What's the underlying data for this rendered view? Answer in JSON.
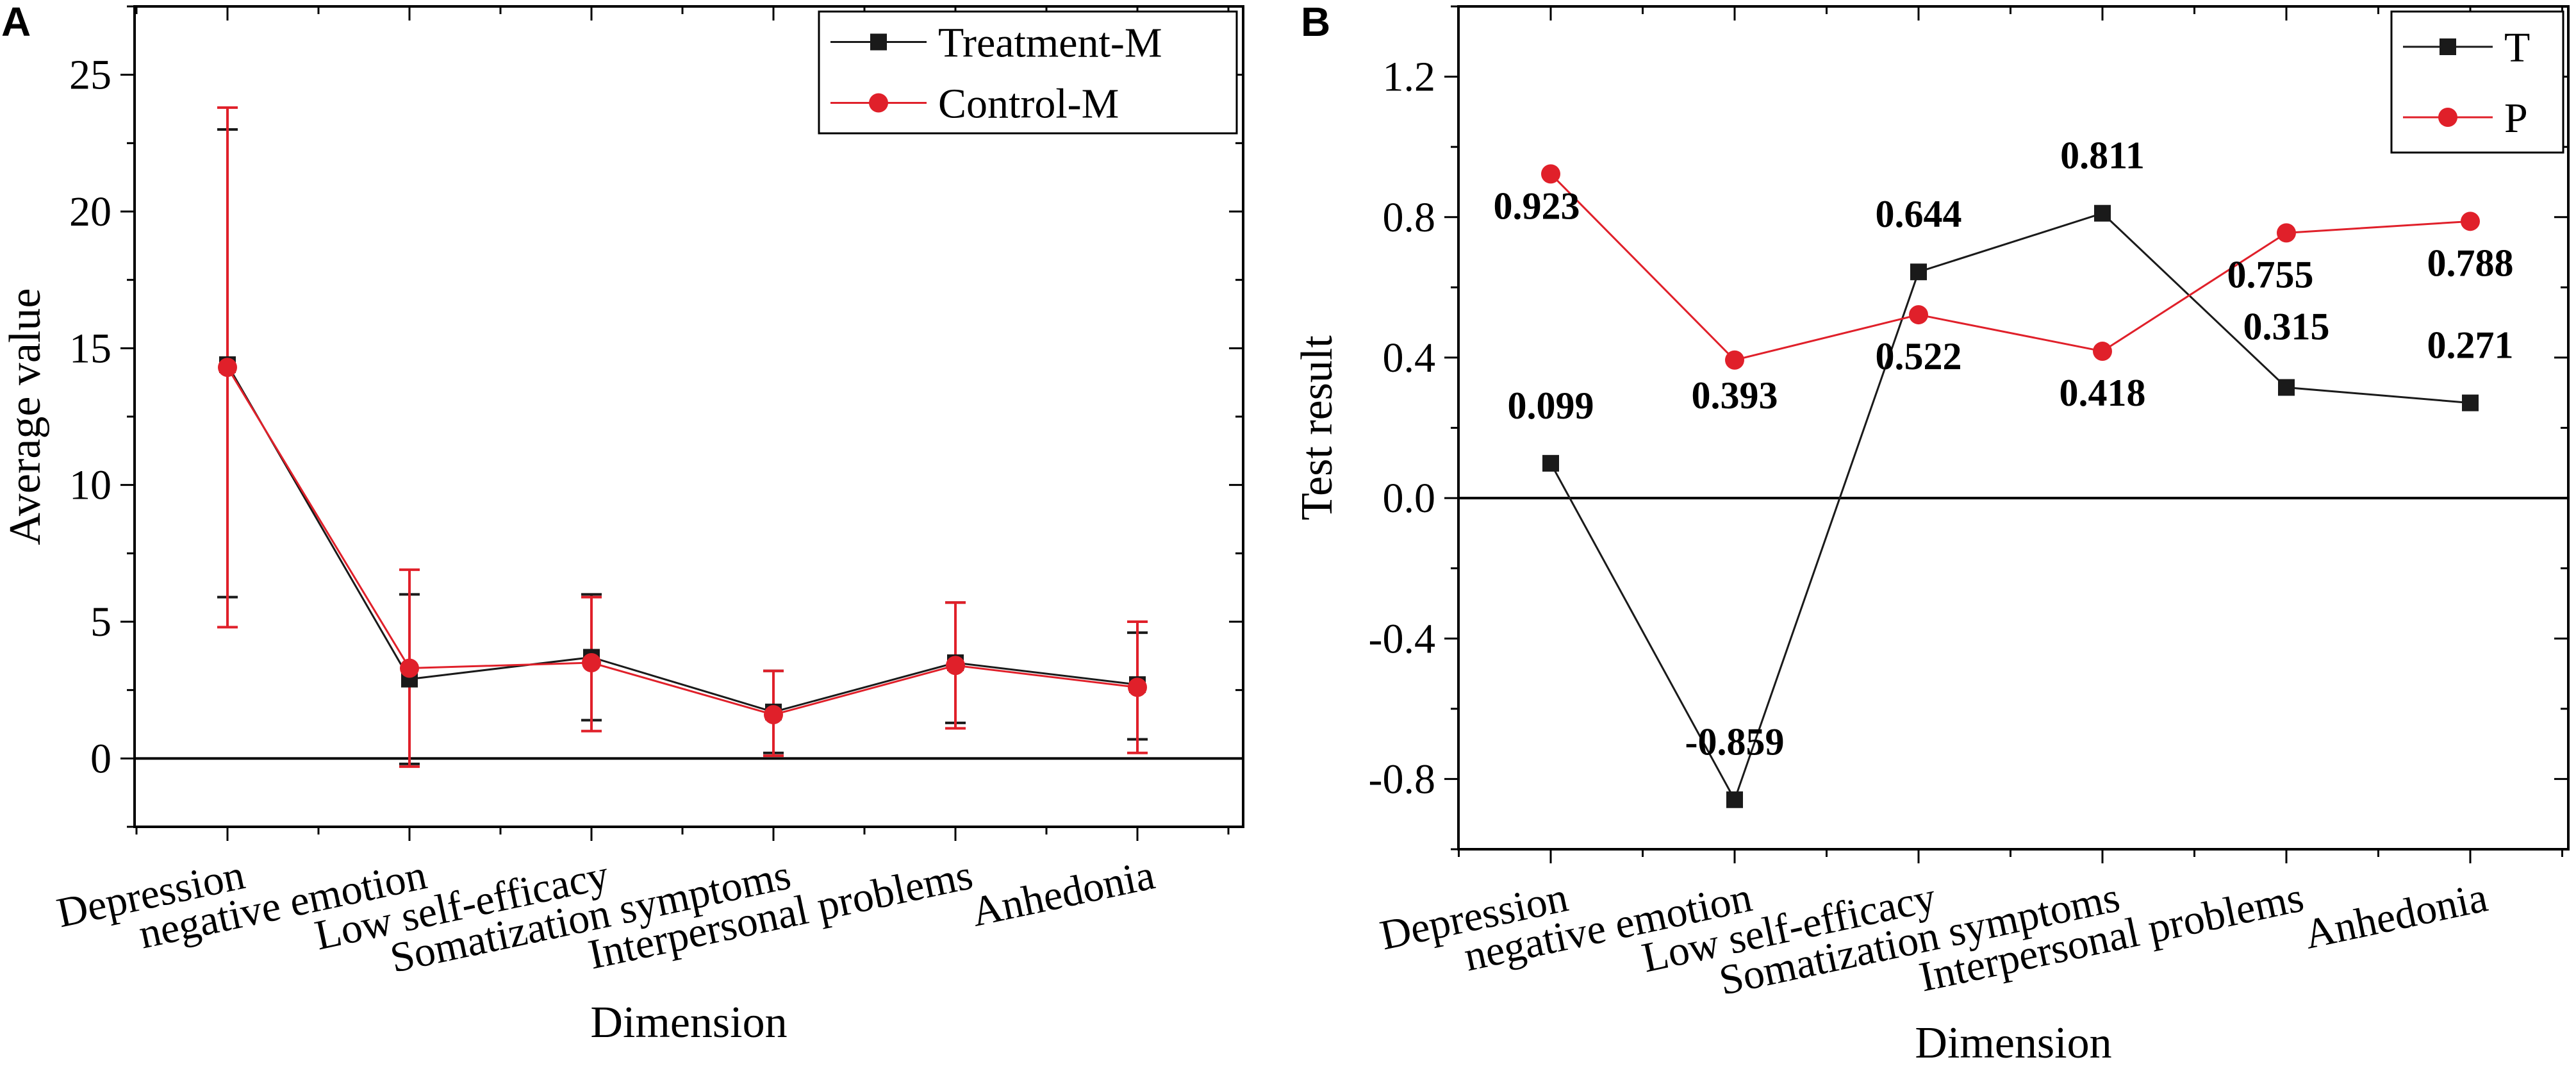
{
  "figure": {
    "panels": [
      "A",
      "B"
    ]
  },
  "chart_data": [
    {
      "panel": "A",
      "type": "line",
      "title": "",
      "xlabel": "Dimension",
      "ylabel": "Average value",
      "ylim": [
        -2.5,
        27.5
      ],
      "yticks": [
        0,
        5,
        10,
        15,
        20,
        25
      ],
      "categories": [
        "Depression",
        "negative emotion",
        "Low self-efficacy",
        "Somatization symptoms",
        "Interpersonal problems",
        "Anhedonia"
      ],
      "series": [
        {
          "name": "Treatment-M",
          "color": "#1a1a1a",
          "marker": "square",
          "values": [
            14.4,
            2.9,
            3.7,
            1.7,
            3.5,
            2.7
          ],
          "error_low": [
            5.9,
            -0.2,
            1.4,
            0.2,
            1.3,
            0.7
          ],
          "error_high": [
            23.0,
            6.0,
            6.0,
            3.2,
            5.7,
            4.6
          ]
        },
        {
          "name": "Control-M",
          "color": "#e0202a",
          "marker": "circle",
          "values": [
            14.3,
            3.3,
            3.5,
            1.6,
            3.4,
            2.6
          ],
          "error_low": [
            4.8,
            -0.3,
            1.0,
            0.1,
            1.1,
            0.2
          ],
          "error_high": [
            23.8,
            6.9,
            5.9,
            3.2,
            5.7,
            5.0
          ]
        }
      ],
      "reference_line": 0,
      "legend": "top-right"
    },
    {
      "panel": "B",
      "type": "line",
      "title": "",
      "xlabel": "Dimension",
      "ylabel": "Test result",
      "ylim": [
        -1.0,
        1.4
      ],
      "yticks": [
        -0.8,
        -0.4,
        0.0,
        0.4,
        0.8,
        1.2
      ],
      "ytick_labels": [
        "-0.8",
        "-0.4",
        "0.0",
        "0.4",
        "0.8",
        "1.2"
      ],
      "categories": [
        "Depression",
        "negative emotion",
        "Low self-efficacy",
        "Somatization symptoms",
        "Interpersonal problems",
        "Anhedonia"
      ],
      "series": [
        {
          "name": "T",
          "color": "#1a1a1a",
          "marker": "square",
          "values": [
            0.099,
            -0.859,
            0.644,
            0.811,
            0.315,
            0.271
          ],
          "labels": [
            "0.099",
            "-0.859",
            "0.644",
            "0.811",
            "0.315",
            "0.271"
          ]
        },
        {
          "name": "P",
          "color": "#e0202a",
          "marker": "circle",
          "values": [
            0.923,
            0.393,
            0.522,
            0.418,
            0.755,
            0.788
          ],
          "labels": [
            "0.923",
            "0.393",
            "0.522",
            "0.418",
            "0.755",
            "0.788"
          ]
        }
      ],
      "reference_line": 0,
      "legend": "top-right"
    }
  ]
}
